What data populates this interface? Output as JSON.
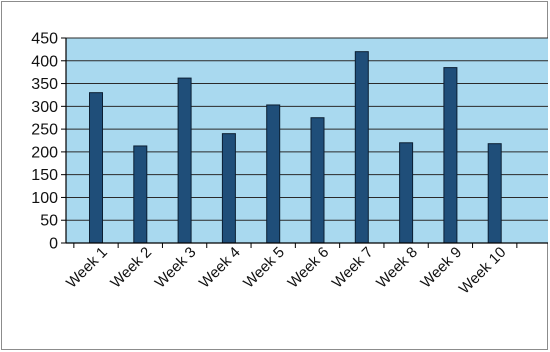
{
  "chart_data": {
    "type": "bar",
    "title": "",
    "xlabel": "",
    "ylabel": "",
    "categories": [
      "Week 1",
      "Week 2",
      "Week 3",
      "Week 4",
      "Week 5",
      "Week 6",
      "Week 7",
      "Week 8",
      "Week 9",
      "Week 10"
    ],
    "values": [
      330,
      213,
      362,
      240,
      303,
      275,
      420,
      220,
      385,
      218
    ],
    "ylim": [
      0,
      450
    ],
    "yticks": [
      "0",
      "50",
      "100",
      "150",
      "200",
      "250",
      "300",
      "350",
      "400",
      "450"
    ],
    "grid": true,
    "legend": "none",
    "colors": {
      "plot_background": "#a9d9ef",
      "bar_fill": "#1f4e79",
      "bar_stroke": "#0b1f33",
      "gridline": "#2a2a2a"
    }
  }
}
